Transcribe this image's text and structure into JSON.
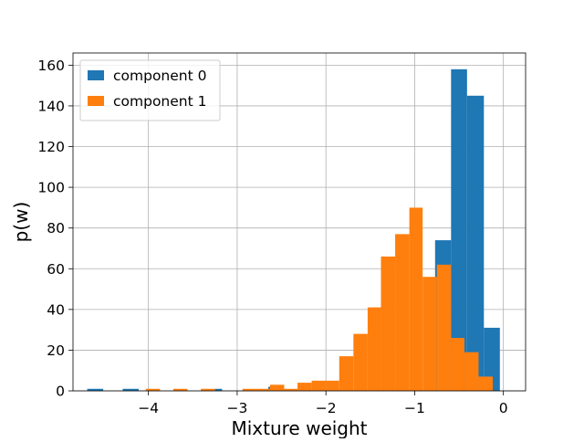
{
  "chart_data": {
    "type": "bar",
    "title": "",
    "xlabel": "Mixture weight",
    "ylabel": "p(w)",
    "xlim": [
      -4.85,
      0.25
    ],
    "ylim": [
      0,
      166
    ],
    "xticks": [
      -4,
      -3,
      -2,
      -1,
      0
    ],
    "xtick_labels": [
      "−4",
      "−3",
      "−2",
      "−1",
      "0"
    ],
    "yticks": [
      0,
      20,
      40,
      60,
      80,
      100,
      120,
      140,
      160
    ],
    "ytick_labels": [
      "0",
      "20",
      "40",
      "60",
      "80",
      "100",
      "120",
      "140",
      "160"
    ],
    "grid": true,
    "legend_position": "top-left",
    "bin_width": 0.16,
    "series": [
      {
        "name": "component 0",
        "color": "#1f77b4",
        "bins": [
          {
            "x0": -4.69,
            "x1": -4.51,
            "value": 1
          },
          {
            "x0": -4.29,
            "x1": -4.11,
            "value": 1
          },
          {
            "x0": -3.25,
            "x1": -3.17,
            "value": 1
          },
          {
            "x0": -2.65,
            "x1": -2.49,
            "value": 2
          },
          {
            "x0": -0.77,
            "x1": -0.59,
            "value": 74
          },
          {
            "x0": -0.59,
            "x1": -0.41,
            "value": 158
          },
          {
            "x0": -0.41,
            "x1": -0.22,
            "value": 145
          },
          {
            "x0": -0.22,
            "x1": -0.04,
            "value": 31
          }
        ]
      },
      {
        "name": "component 1",
        "color": "#ff7f0e",
        "bins": [
          {
            "x0": -4.03,
            "x1": -3.87,
            "value": 1
          },
          {
            "x0": -3.72,
            "x1": -3.56,
            "value": 1
          },
          {
            "x0": -3.41,
            "x1": -3.25,
            "value": 1
          },
          {
            "x0": -2.94,
            "x1": -2.79,
            "value": 1
          },
          {
            "x0": -2.79,
            "x1": -2.63,
            "value": 1
          },
          {
            "x0": -2.63,
            "x1": -2.47,
            "value": 3
          },
          {
            "x0": -2.47,
            "x1": -2.32,
            "value": 1
          },
          {
            "x0": -2.32,
            "x1": -2.16,
            "value": 4
          },
          {
            "x0": -2.16,
            "x1": -2.0,
            "value": 5
          },
          {
            "x0": -2.0,
            "x1": -1.85,
            "value": 5
          },
          {
            "x0": -1.85,
            "x1": -1.69,
            "value": 17
          },
          {
            "x0": -1.69,
            "x1": -1.53,
            "value": 28
          },
          {
            "x0": -1.53,
            "x1": -1.38,
            "value": 41
          },
          {
            "x0": -1.38,
            "x1": -1.22,
            "value": 66
          },
          {
            "x0": -1.22,
            "x1": -1.06,
            "value": 77
          },
          {
            "x0": -1.06,
            "x1": -0.91,
            "value": 90
          },
          {
            "x0": -0.91,
            "x1": -0.75,
            "value": 56
          },
          {
            "x0": -0.75,
            "x1": -0.59,
            "value": 62
          },
          {
            "x0": -0.59,
            "x1": -0.44,
            "value": 26
          },
          {
            "x0": -0.44,
            "x1": -0.28,
            "value": 19
          },
          {
            "x0": -0.28,
            "x1": -0.12,
            "value": 7
          }
        ]
      }
    ]
  }
}
